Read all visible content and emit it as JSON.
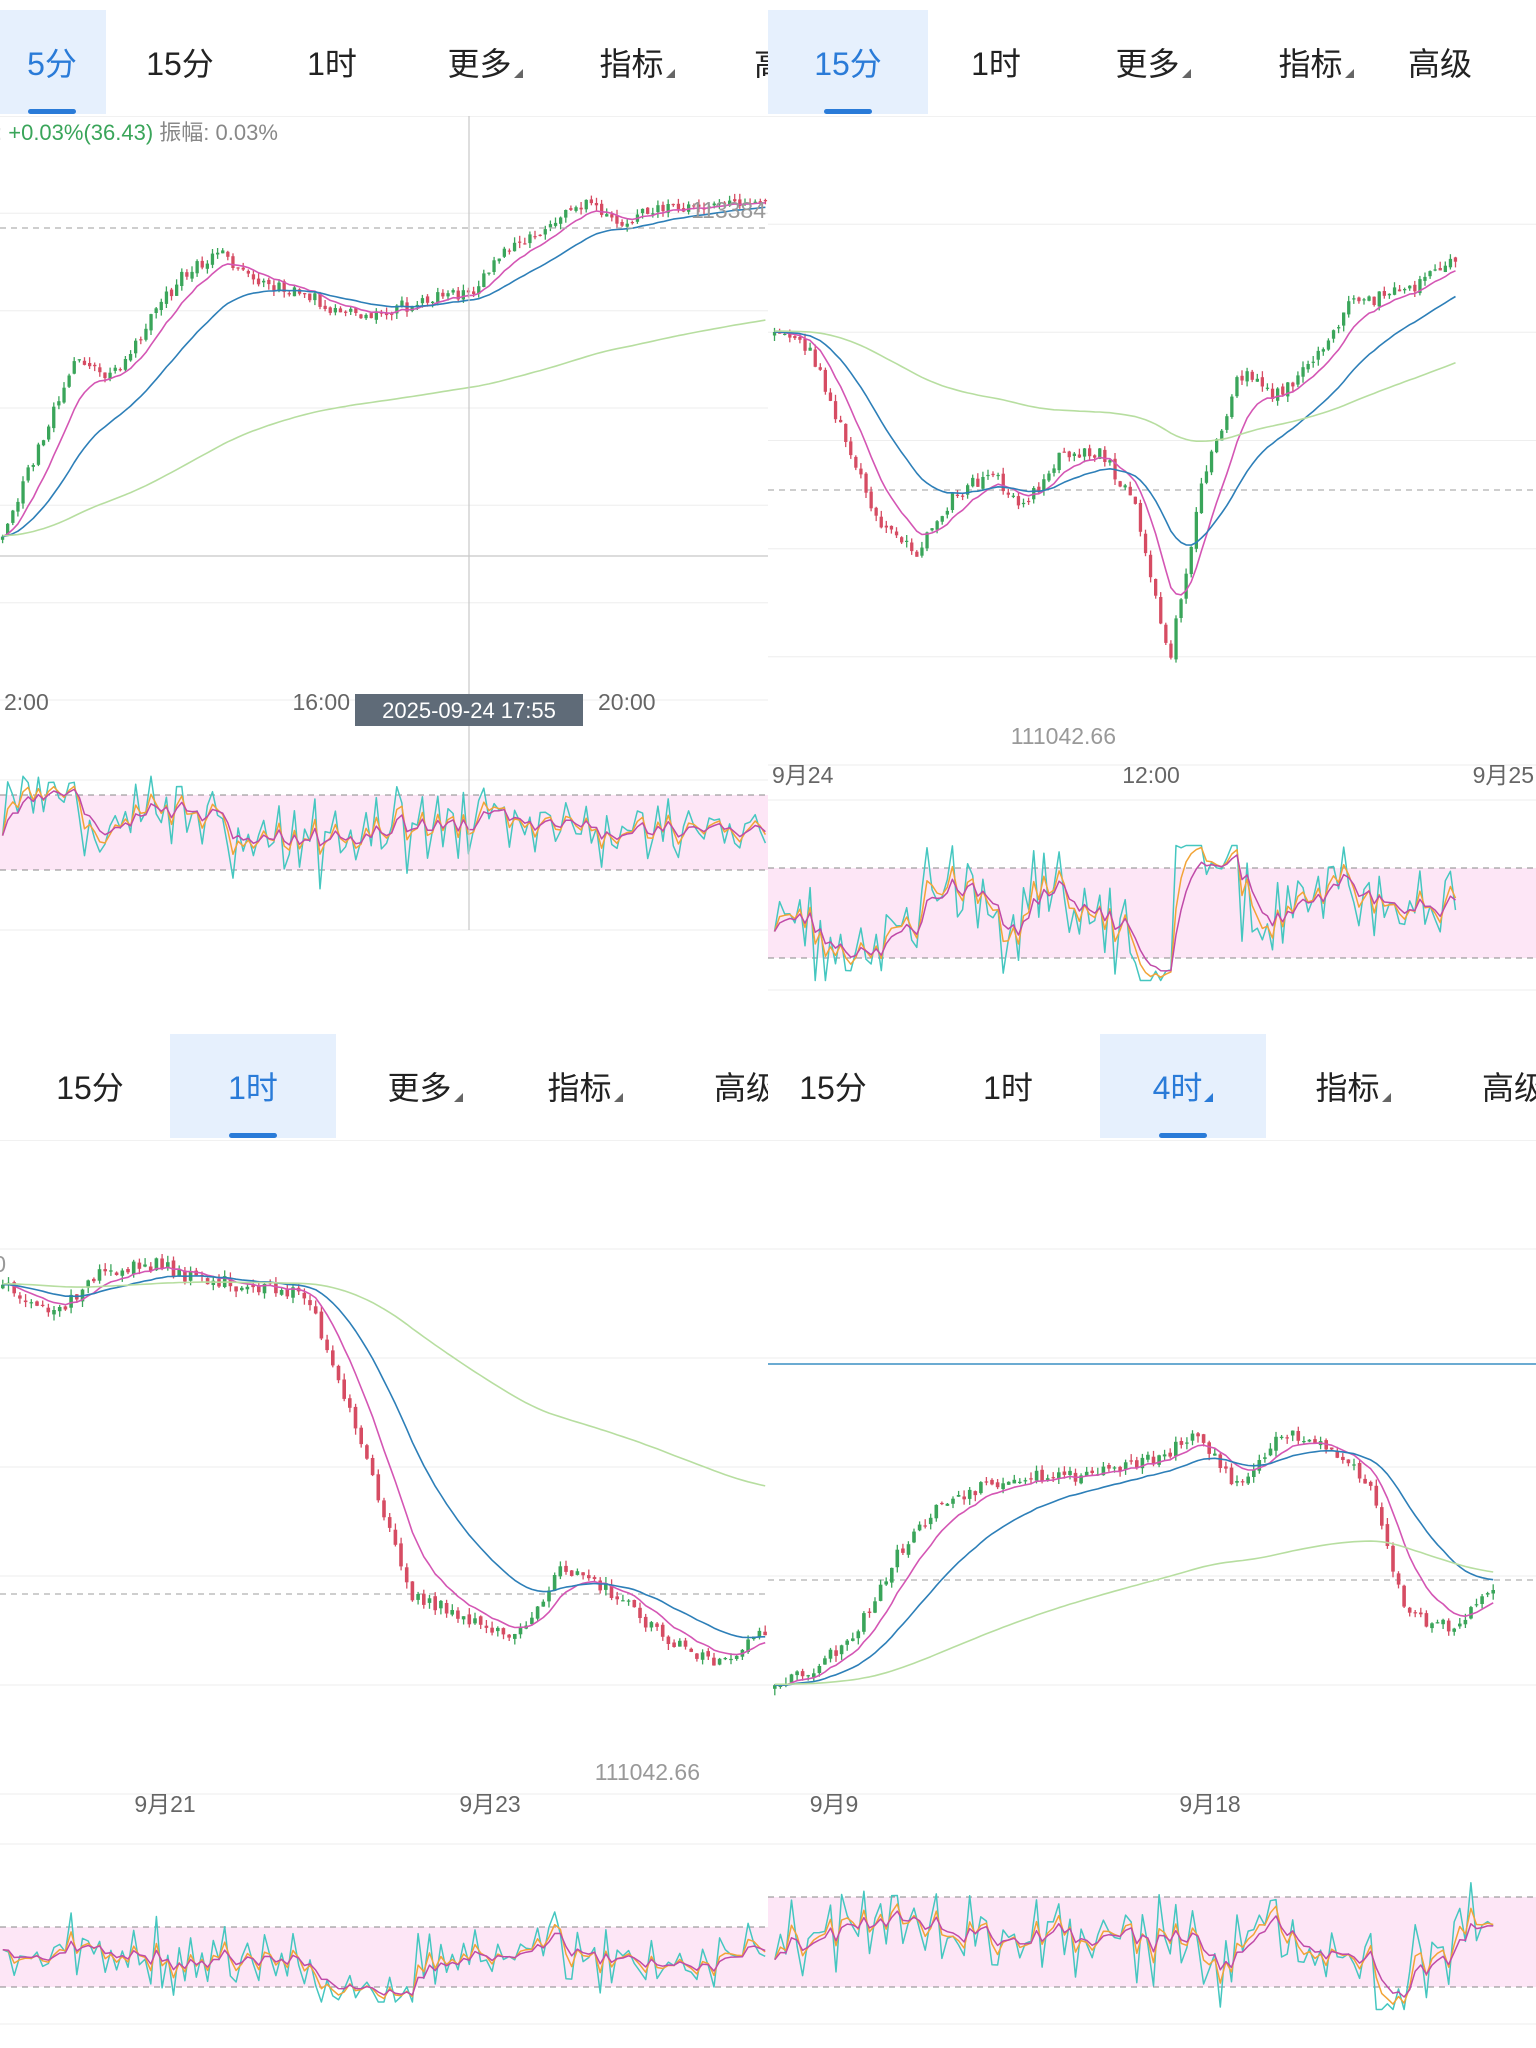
{
  "panels": [
    {
      "id": "p1",
      "tabs": [
        {
          "label": "5分",
          "active": true,
          "caret": false
        },
        {
          "label": "15分",
          "active": false,
          "caret": false
        },
        {
          "label": "1时",
          "active": false,
          "caret": false
        },
        {
          "label": "更多",
          "active": false,
          "caret": true
        },
        {
          "label": "指标",
          "active": false,
          "caret": true
        },
        {
          "label": "高",
          "active": false,
          "caret": false
        }
      ],
      "info": {
        "prefix": ":",
        "change": "+0.03%(36.43)",
        "amp_label": "振幅:",
        "amp_value": "0.03%"
      },
      "price_labels": [
        "113384"
      ],
      "x_labels": [
        "2:00",
        "16:00",
        "20:00"
      ],
      "crosshair_label": "2025-09-24 17:55"
    },
    {
      "id": "p2",
      "tabs": [
        {
          "label": "15分",
          "active": true,
          "caret": false
        },
        {
          "label": "1时",
          "active": false,
          "caret": false
        },
        {
          "label": "更多",
          "active": false,
          "caret": true
        },
        {
          "label": "指标",
          "active": false,
          "caret": true
        },
        {
          "label": "高级",
          "active": false,
          "caret": false
        }
      ],
      "price_labels": [
        "111042.66"
      ],
      "x_labels": [
        "9月24",
        "12:00",
        "9月25"
      ]
    },
    {
      "id": "p3",
      "tabs": [
        {
          "label": "15分",
          "active": false,
          "caret": false
        },
        {
          "label": "1时",
          "active": true,
          "caret": false
        },
        {
          "label": "更多",
          "active": false,
          "caret": true
        },
        {
          "label": "指标",
          "active": false,
          "caret": true
        },
        {
          "label": "高级",
          "active": false,
          "caret": false
        }
      ],
      "price_labels": [
        "0",
        "111042.66"
      ],
      "x_labels": [
        "9月21",
        "9月23"
      ]
    },
    {
      "id": "p4",
      "tabs": [
        {
          "label": "15分",
          "active": false,
          "caret": false
        },
        {
          "label": "1时",
          "active": false,
          "caret": false
        },
        {
          "label": "4时",
          "active": true,
          "caret": true
        },
        {
          "label": "指标",
          "active": false,
          "caret": true
        },
        {
          "label": "高级",
          "active": false,
          "caret": false
        }
      ],
      "price_labels": [],
      "x_labels": [
        "9月9",
        "9月18"
      ]
    }
  ],
  "colors": {
    "up": "#3aa55a",
    "down": "#d64c63",
    "ma_fast": "#d456b4",
    "ma_mid": "#2d7fb8",
    "ma_slow": "#b7dea0",
    "osc_band": "#fde6f6",
    "osc_k": "#45c7c0",
    "osc_d": "#f2a437",
    "osc_j": "#c04aa8",
    "accent": "#2a7bd8",
    "grid": "#eeeeee",
    "axis_text": "#999999",
    "info_up": "#3aa55a"
  },
  "chart_data": [
    {
      "type": "candlestick",
      "panel": "p1",
      "interval": "5分",
      "ylim": [
        110500,
        113600
      ],
      "annotations": {
        "max_price": 113384
      },
      "close_path": [
        111400,
        111900,
        112400,
        112300,
        112600,
        112900,
        113000,
        112850,
        112800,
        112700,
        112650,
        112700,
        112750,
        112800,
        113050,
        113150,
        113300,
        113200,
        113250,
        113280,
        113300,
        113290
      ]
    },
    {
      "type": "candlestick",
      "panel": "p2",
      "interval": "15分",
      "ylim": [
        110800,
        113400
      ],
      "annotations": {
        "min_price": 111042.66
      },
      "close_path": [
        112600,
        112500,
        112100,
        111700,
        111600,
        111850,
        111950,
        111800,
        112050,
        112050,
        111850,
        111100,
        111950,
        112400,
        112300,
        112450,
        112700,
        112750,
        112800,
        112900
      ]
    },
    {
      "type": "candlestick",
      "panel": "p3",
      "interval": "1时",
      "ylim": [
        110600,
        116200
      ],
      "annotations": {
        "min_price": 111042.66
      },
      "close_path": [
        115200,
        114900,
        115300,
        115350,
        115200,
        115150,
        115050,
        113800,
        112250,
        112100,
        111850,
        112500,
        112300,
        111850,
        111650,
        111900
      ]
    },
    {
      "type": "candlestick",
      "panel": "p4",
      "interval": "4时",
      "ylim": [
        106500,
        119500
      ],
      "annotations": {},
      "close_path": [
        108500,
        108800,
        109700,
        111400,
        112400,
        112800,
        113000,
        112950,
        113150,
        113300,
        113800,
        112700,
        113900,
        113700,
        112900,
        109900,
        109700,
        110400
      ]
    }
  ]
}
